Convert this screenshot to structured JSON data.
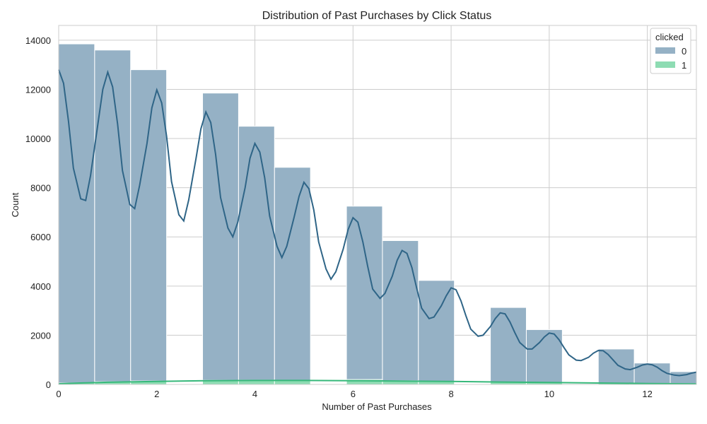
{
  "chart_data": {
    "type": "bar",
    "title": "Distribution of Past Purchases by Click Status",
    "xlabel": "Number of Past Purchases",
    "ylabel": "Count",
    "xlim": [
      0,
      13
    ],
    "ylim": [
      0,
      14600
    ],
    "xticks": [
      "0",
      "2",
      "4",
      "6",
      "8",
      "10",
      "12"
    ],
    "yticks": [
      "0",
      "2000",
      "4000",
      "6000",
      "8000",
      "10000",
      "12000",
      "14000"
    ],
    "grid": true,
    "legend": {
      "title": "clicked",
      "position": "top-right",
      "entries": [
        "0",
        "1"
      ]
    },
    "colors": {
      "series0_bar": "#95b1c5",
      "series0_line": "#2f6587",
      "series1_bar": "#8edcb3",
      "series1_line": "#36b87a"
    },
    "bin_width": 0.7333,
    "bins": [
      {
        "x0": 0.0,
        "x1": 0.7333
      },
      {
        "x0": 0.7333,
        "x1": 1.4667
      },
      {
        "x0": 1.4667,
        "x1": 2.2
      },
      {
        "x0": 2.2,
        "x1": 2.9333
      },
      {
        "x0": 2.9333,
        "x1": 3.6667
      },
      {
        "x0": 3.6667,
        "x1": 4.4
      },
      {
        "x0": 4.4,
        "x1": 5.1333
      },
      {
        "x0": 5.1333,
        "x1": 5.8667
      },
      {
        "x0": 5.8667,
        "x1": 6.6
      },
      {
        "x0": 6.6,
        "x1": 7.3333
      },
      {
        "x0": 7.3333,
        "x1": 8.0667
      },
      {
        "x0": 8.0667,
        "x1": 8.8
      },
      {
        "x0": 8.8,
        "x1": 9.5333
      },
      {
        "x0": 9.5333,
        "x1": 10.2667
      },
      {
        "x0": 10.2667,
        "x1": 11.0
      },
      {
        "x0": 11.0,
        "x1": 11.7333
      },
      {
        "x0": 11.7333,
        "x1": 12.4667
      },
      {
        "x0": 12.4667,
        "x1": 13.0
      }
    ],
    "series": [
      {
        "name": "0",
        "values": [
          13850,
          13600,
          12800,
          0,
          11850,
          10500,
          8830,
          0,
          7250,
          5850,
          4230,
          0,
          3130,
          2230,
          0,
          1440,
          870,
          520
        ],
        "kde": [
          [
            0.0,
            12800
          ],
          [
            0.1,
            12250
          ],
          [
            0.2,
            10700
          ],
          [
            0.3,
            8800
          ],
          [
            0.45,
            7550
          ],
          [
            0.55,
            7480
          ],
          [
            0.65,
            8500
          ],
          [
            0.8,
            10600
          ],
          [
            0.9,
            12000
          ],
          [
            1.0,
            12700
          ],
          [
            1.1,
            12100
          ],
          [
            1.2,
            10600
          ],
          [
            1.3,
            8700
          ],
          [
            1.45,
            7320
          ],
          [
            1.55,
            7150
          ],
          [
            1.65,
            8100
          ],
          [
            1.8,
            9800
          ],
          [
            1.9,
            11250
          ],
          [
            2.0,
            11980
          ],
          [
            2.1,
            11450
          ],
          [
            2.2,
            10100
          ],
          [
            2.3,
            8250
          ],
          [
            2.45,
            6900
          ],
          [
            2.55,
            6650
          ],
          [
            2.65,
            7500
          ],
          [
            2.8,
            9200
          ],
          [
            2.9,
            10400
          ],
          [
            3.0,
            11080
          ],
          [
            3.1,
            10650
          ],
          [
            3.2,
            9350
          ],
          [
            3.3,
            7600
          ],
          [
            3.45,
            6360
          ],
          [
            3.55,
            6000
          ],
          [
            3.65,
            6600
          ],
          [
            3.8,
            8000
          ],
          [
            3.9,
            9200
          ],
          [
            4.0,
            9800
          ],
          [
            4.1,
            9450
          ],
          [
            4.2,
            8400
          ],
          [
            4.3,
            6850
          ],
          [
            4.45,
            5620
          ],
          [
            4.55,
            5160
          ],
          [
            4.65,
            5620
          ],
          [
            4.8,
            6800
          ],
          [
            4.9,
            7650
          ],
          [
            5.0,
            8220
          ],
          [
            5.1,
            7960
          ],
          [
            5.2,
            7100
          ],
          [
            5.3,
            5800
          ],
          [
            5.45,
            4700
          ],
          [
            5.55,
            4280
          ],
          [
            5.65,
            4580
          ],
          [
            5.8,
            5500
          ],
          [
            5.9,
            6300
          ],
          [
            6.0,
            6780
          ],
          [
            6.1,
            6600
          ],
          [
            6.2,
            5800
          ],
          [
            6.3,
            4800
          ],
          [
            6.4,
            3880
          ],
          [
            6.55,
            3500
          ],
          [
            6.65,
            3700
          ],
          [
            6.8,
            4400
          ],
          [
            6.9,
            5050
          ],
          [
            7.0,
            5450
          ],
          [
            7.1,
            5330
          ],
          [
            7.2,
            4750
          ],
          [
            7.3,
            3900
          ],
          [
            7.4,
            3100
          ],
          [
            7.55,
            2680
          ],
          [
            7.65,
            2740
          ],
          [
            7.8,
            3200
          ],
          [
            7.9,
            3600
          ],
          [
            8.0,
            3930
          ],
          [
            8.1,
            3850
          ],
          [
            8.2,
            3400
          ],
          [
            8.3,
            2800
          ],
          [
            8.4,
            2250
          ],
          [
            8.55,
            1960
          ],
          [
            8.65,
            2000
          ],
          [
            8.8,
            2350
          ],
          [
            8.9,
            2680
          ],
          [
            9.0,
            2910
          ],
          [
            9.1,
            2870
          ],
          [
            9.2,
            2540
          ],
          [
            9.3,
            2100
          ],
          [
            9.4,
            1700
          ],
          [
            9.55,
            1440
          ],
          [
            9.65,
            1440
          ],
          [
            9.8,
            1700
          ],
          [
            9.9,
            1930
          ],
          [
            10.0,
            2090
          ],
          [
            10.1,
            2050
          ],
          [
            10.2,
            1820
          ],
          [
            10.3,
            1500
          ],
          [
            10.4,
            1200
          ],
          [
            10.55,
            990
          ],
          [
            10.65,
            970
          ],
          [
            10.8,
            1100
          ],
          [
            10.9,
            1270
          ],
          [
            11.0,
            1380
          ],
          [
            11.1,
            1370
          ],
          [
            11.2,
            1220
          ],
          [
            11.3,
            1000
          ],
          [
            11.4,
            780
          ],
          [
            11.55,
            630
          ],
          [
            11.65,
            600
          ],
          [
            11.8,
            700
          ],
          [
            11.9,
            790
          ],
          [
            12.0,
            830
          ],
          [
            12.1,
            800
          ],
          [
            12.2,
            700
          ],
          [
            12.3,
            560
          ],
          [
            12.4,
            450
          ],
          [
            12.55,
            380
          ],
          [
            12.65,
            360
          ],
          [
            12.8,
            400
          ],
          [
            12.9,
            460
          ],
          [
            13.0,
            500
          ]
        ]
      },
      {
        "name": "1",
        "values": [
          60,
          110,
          140,
          0,
          170,
          175,
          170,
          0,
          200,
          150,
          130,
          0,
          100,
          75,
          0,
          55,
          40,
          20
        ],
        "kde": [
          [
            0.0,
            30
          ],
          [
            0.5,
            60
          ],
          [
            1.0,
            90
          ],
          [
            2.0,
            125
          ],
          [
            3.0,
            150
          ],
          [
            4.0,
            160
          ],
          [
            5.0,
            160
          ],
          [
            6.0,
            152
          ],
          [
            7.0,
            138
          ],
          [
            8.0,
            120
          ],
          [
            9.0,
            98
          ],
          [
            10.0,
            78
          ],
          [
            11.0,
            58
          ],
          [
            12.0,
            38
          ],
          [
            13.0,
            22
          ]
        ]
      }
    ]
  }
}
